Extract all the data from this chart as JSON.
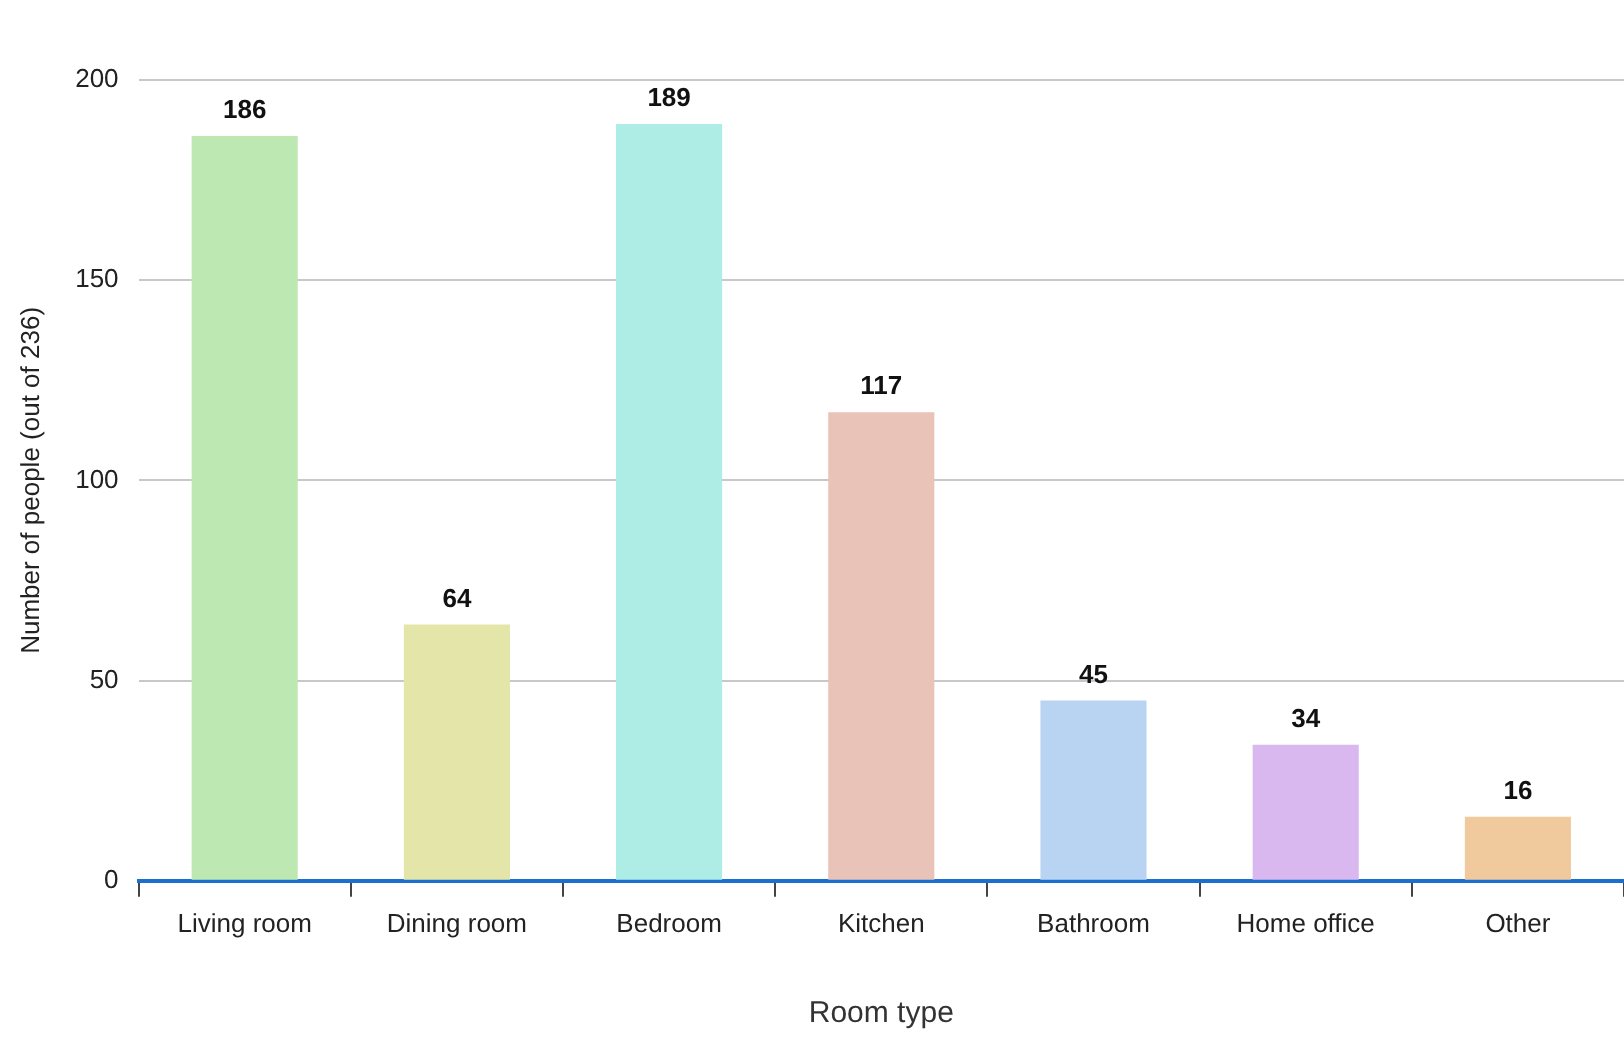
{
  "chart_data": {
    "type": "bar",
    "xlabel": "Room type",
    "ylabel": "Number of people (out of 236)",
    "categories": [
      "Living room",
      "Dining room",
      "Bedroom",
      "Kitchen",
      "Bathroom",
      "Home office",
      "Other"
    ],
    "values": [
      186,
      64,
      189,
      117,
      45,
      34,
      16
    ],
    "colors": [
      "#bde8b2",
      "#e3e6a8",
      "#aeece6",
      "#e9c2b8",
      "#b9d4f2",
      "#d9b8f0",
      "#f0c99c"
    ],
    "ylim": [
      0,
      200
    ],
    "yticks": [
      0,
      50,
      100,
      150,
      200
    ],
    "grid": "y",
    "legend": false,
    "data_labels": true
  }
}
